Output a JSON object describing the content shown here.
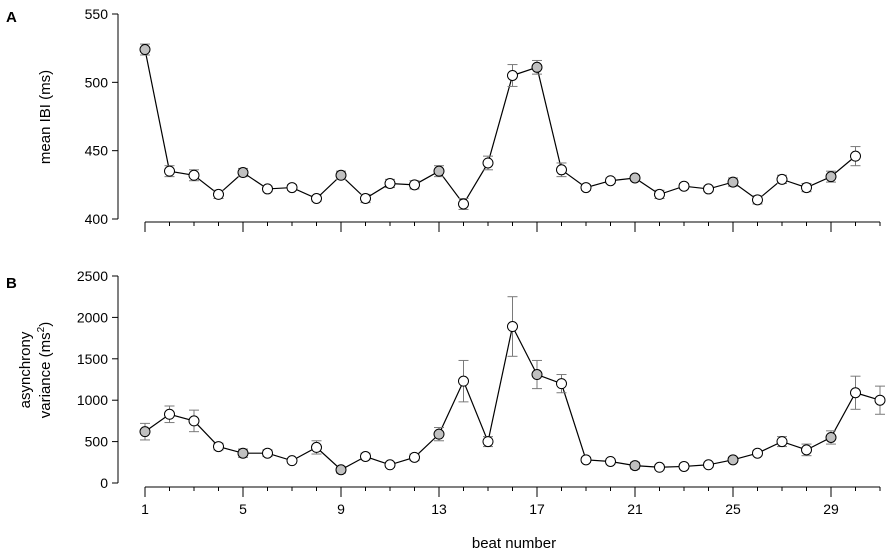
{
  "colors": {
    "filled_marker": "#c0c0c0",
    "open_marker": "#ffffff",
    "line": "#000000",
    "error_bar": "#7a7a7a"
  },
  "chart_data": [
    {
      "type": "line",
      "panel": "A",
      "ylabel": "mean IBI (ms)",
      "ylim": [
        400,
        550
      ],
      "yticks": [
        400,
        450,
        500,
        550
      ],
      "x": [
        1,
        2,
        3,
        4,
        5,
        6,
        7,
        8,
        9,
        10,
        11,
        12,
        13,
        14,
        15,
        16,
        17,
        18,
        19,
        20,
        21,
        22,
        23,
        24,
        25,
        26,
        27,
        28,
        29,
        30
      ],
      "values": [
        524,
        435,
        432,
        418,
        434,
        422,
        423,
        415,
        432,
        415,
        426,
        425,
        435,
        411,
        441,
        505,
        511,
        436,
        423,
        428,
        430,
        418,
        424,
        422,
        427,
        414,
        429,
        423,
        431,
        446
      ],
      "error": [
        4,
        4,
        4,
        3,
        3,
        2,
        2,
        2,
        3,
        3,
        3,
        3,
        4,
        4,
        5,
        8,
        5,
        5,
        2,
        2,
        2,
        3,
        2,
        2,
        3,
        3,
        3,
        3,
        4,
        7
      ],
      "filled": [
        1,
        5,
        9,
        13,
        17,
        21,
        25,
        29
      ],
      "grid": false
    },
    {
      "type": "line",
      "panel": "B",
      "ylabel_line1": "asynchrony",
      "ylabel_line2": "variance (ms",
      "ylabel_sup": "2",
      "ylabel_end": ")",
      "ylim": [
        0,
        2500
      ],
      "yticks": [
        0,
        500,
        1000,
        1500,
        2000,
        2500
      ],
      "x": [
        1,
        2,
        3,
        4,
        5,
        6,
        7,
        8,
        9,
        10,
        11,
        12,
        13,
        14,
        15,
        16,
        17,
        18,
        19,
        20,
        21,
        22,
        23,
        24,
        25,
        26,
        27,
        28,
        29,
        30,
        31
      ],
      "values": [
        620,
        830,
        750,
        440,
        360,
        360,
        270,
        430,
        160,
        320,
        220,
        310,
        590,
        1230,
        500,
        1890,
        1310,
        1200,
        280,
        260,
        210,
        190,
        200,
        220,
        280,
        360,
        500,
        400,
        550,
        1090,
        1000
      ],
      "error": [
        100,
        100,
        130,
        40,
        50,
        40,
        30,
        80,
        40,
        40,
        30,
        40,
        80,
        250,
        60,
        360,
        170,
        110,
        30,
        30,
        40,
        30,
        30,
        30,
        30,
        30,
        60,
        70,
        80,
        200,
        170
      ],
      "filled": [
        1,
        5,
        9,
        13,
        17,
        21,
        25,
        29
      ],
      "grid": false
    }
  ],
  "xaxis": {
    "label": "beat number",
    "xlim": [
      1,
      31
    ],
    "ticks": [
      1,
      5,
      9,
      13,
      17,
      21,
      25,
      29
    ],
    "minor_ticks": [
      1,
      2,
      3,
      4,
      5,
      6,
      7,
      8,
      9,
      10,
      11,
      12,
      13,
      14,
      15,
      16,
      17,
      18,
      19,
      20,
      21,
      22,
      23,
      24,
      25,
      26,
      27,
      28,
      29,
      30,
      31
    ]
  }
}
